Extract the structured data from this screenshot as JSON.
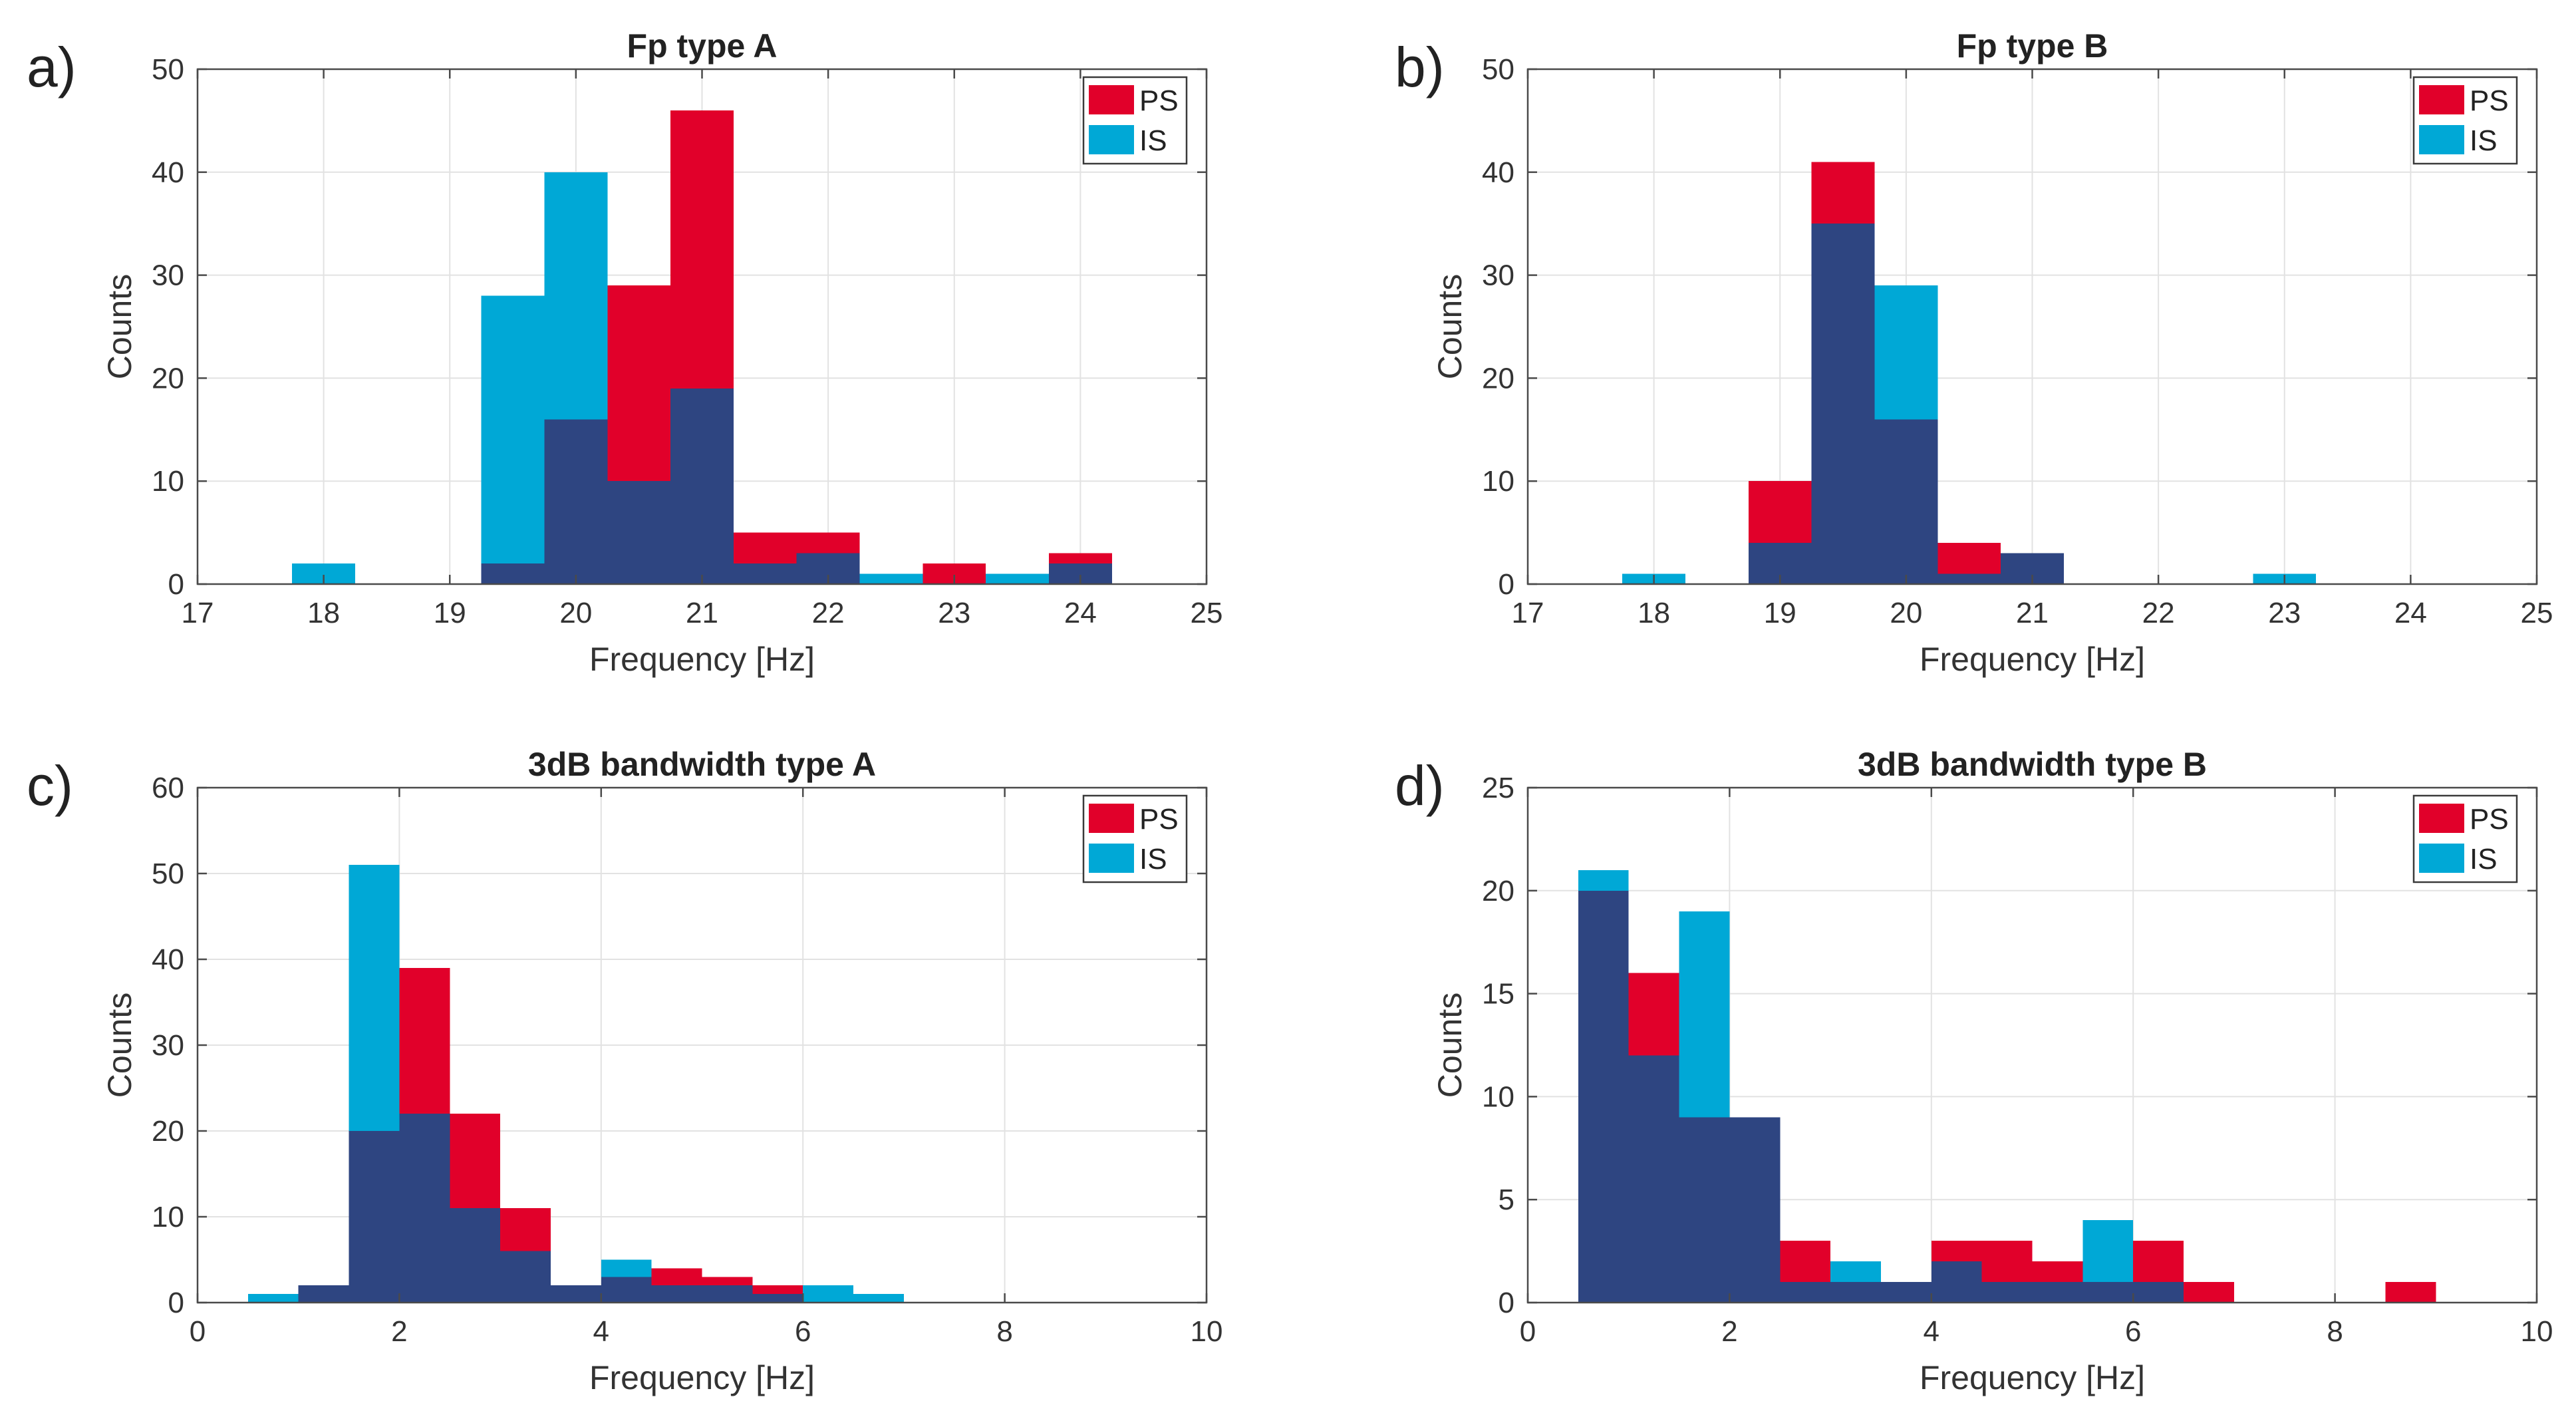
{
  "colors": {
    "ps": "#E1002A",
    "is": "#00A8D6",
    "overlap": "#2E4581"
  },
  "legend": [
    "PS",
    "IS"
  ],
  "chart_data": [
    {
      "panel": "a)",
      "type": "bar",
      "title": "Fp type A",
      "xlabel": "Frequency [Hz]",
      "ylabel": "Counts",
      "xlim": [
        17,
        25
      ],
      "ylim": [
        0,
        50
      ],
      "xticks": [
        "17",
        "18",
        "19",
        "20",
        "21",
        "22",
        "23",
        "24",
        "25"
      ],
      "yticks": [
        "0",
        "10",
        "20",
        "30",
        "40",
        "50"
      ],
      "grid": true,
      "legend_position": "top-right",
      "bin_edges": [
        17.75,
        18.25,
        18.75,
        19.25,
        19.75,
        20.25,
        20.75,
        21.25,
        21.75,
        22.25,
        22.75,
        23.25,
        23.75,
        24.25
      ],
      "series": [
        {
          "name": "PS",
          "values": [
            0,
            0,
            0,
            2,
            16,
            29,
            46,
            5,
            5,
            0,
            2,
            0,
            3
          ]
        },
        {
          "name": "IS",
          "values": [
            2,
            0,
            0,
            28,
            40,
            10,
            19,
            2,
            3,
            1,
            0,
            1,
            2
          ]
        }
      ]
    },
    {
      "panel": "b)",
      "type": "bar",
      "title": "Fp type B",
      "xlabel": "Frequency [Hz]",
      "ylabel": "Counts",
      "xlim": [
        17,
        25
      ],
      "ylim": [
        0,
        50
      ],
      "xticks": [
        "17",
        "18",
        "19",
        "20",
        "21",
        "22",
        "23",
        "24",
        "25"
      ],
      "yticks": [
        "0",
        "10",
        "20",
        "30",
        "40",
        "50"
      ],
      "grid": true,
      "legend_position": "top-right",
      "bin_edges": [
        17.75,
        18.25,
        18.75,
        19.25,
        19.75,
        20.25,
        20.75,
        21.25,
        21.75,
        22.25,
        22.75,
        23.25
      ],
      "series": [
        {
          "name": "PS",
          "values": [
            0,
            0,
            10,
            41,
            16,
            4,
            3,
            0,
            0,
            0,
            0
          ]
        },
        {
          "name": "IS",
          "values": [
            1,
            0,
            4,
            35,
            29,
            1,
            3,
            0,
            0,
            0,
            1
          ]
        }
      ]
    },
    {
      "panel": "c)",
      "type": "bar",
      "title": "3dB bandwidth type A",
      "xlabel": "Frequency [Hz]",
      "ylabel": "Counts",
      "xlim": [
        0,
        10
      ],
      "ylim": [
        0,
        60
      ],
      "xticks": [
        "0",
        "2",
        "4",
        "6",
        "8",
        "10"
      ],
      "yticks": [
        "0",
        "10",
        "20",
        "30",
        "40",
        "50",
        "60"
      ],
      "grid": true,
      "legend_position": "top-right",
      "bin_edges": [
        0.5,
        1.0,
        1.5,
        2.0,
        2.5,
        3.0,
        3.5,
        4.0,
        4.5,
        5.0,
        5.5,
        6.0,
        6.5,
        7.0
      ],
      "series": [
        {
          "name": "PS",
          "values": [
            0,
            2,
            20,
            39,
            22,
            11,
            2,
            3,
            4,
            3,
            2,
            0,
            0
          ]
        },
        {
          "name": "IS",
          "values": [
            1,
            2,
            51,
            22,
            11,
            6,
            2,
            5,
            2,
            2,
            1,
            2,
            1
          ]
        }
      ]
    },
    {
      "panel": "d)",
      "type": "bar",
      "title": "3dB bandwidth type B",
      "xlabel": "Frequency [Hz]",
      "ylabel": "Counts",
      "xlim": [
        0,
        10
      ],
      "ylim": [
        0,
        25
      ],
      "xticks": [
        "0",
        "2",
        "4",
        "6",
        "8",
        "10"
      ],
      "yticks": [
        "0",
        "5",
        "10",
        "15",
        "20",
        "25"
      ],
      "grid": true,
      "legend_position": "top-right",
      "bin_edges": [
        0.5,
        1.0,
        1.5,
        2.0,
        2.5,
        3.0,
        3.5,
        4.0,
        4.5,
        5.0,
        5.5,
        6.0,
        6.5,
        7.0,
        7.5,
        8.0,
        8.5,
        9.0
      ],
      "series": [
        {
          "name": "PS",
          "values": [
            20,
            16,
            9,
            9,
            3,
            1,
            1,
            3,
            3,
            2,
            1,
            3,
            1,
            0,
            0,
            0,
            1
          ]
        },
        {
          "name": "IS",
          "values": [
            21,
            12,
            19,
            9,
            1,
            2,
            1,
            2,
            1,
            1,
            4,
            1,
            0,
            0,
            0,
            0,
            0
          ]
        }
      ]
    }
  ]
}
